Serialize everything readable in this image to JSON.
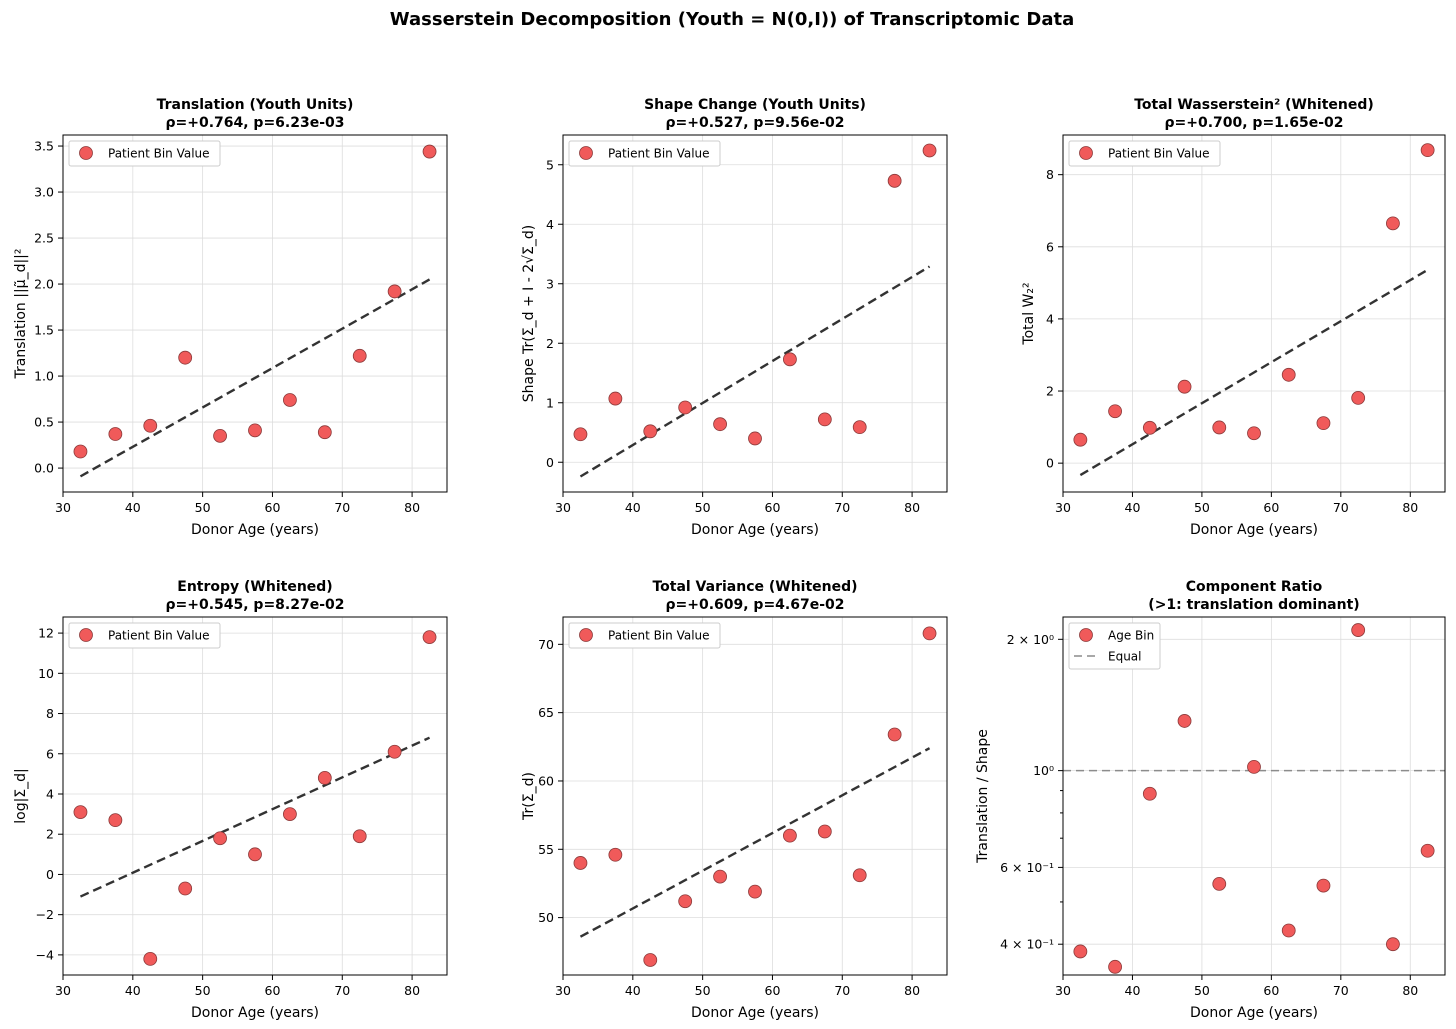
{
  "figure_title": "Wasserstein Decomposition (Youth = N(0,I)) of Transcriptomic Data",
  "colors": {
    "point_fill": "#f05a5a",
    "point_edge": "#8b3a3a",
    "trend": "#333333",
    "reference": "#8c8c8c",
    "grid": "#dddddd"
  },
  "chart_data": [
    {
      "type": "scatter",
      "title": "Translation (Youth Units)",
      "subtitle": "ρ=+0.764, p=6.23e-03",
      "xlabel": "Donor Age (years)",
      "ylabel": "Translation ||μ̃_d||²",
      "xlim": [
        30,
        85
      ],
      "ylim": [
        -0.26,
        3.62
      ],
      "xticks": [
        30,
        40,
        50,
        60,
        70,
        80
      ],
      "yticks": [
        0.0,
        0.5,
        1.0,
        1.5,
        2.0,
        2.5,
        3.0,
        3.5
      ],
      "ytick_labels": [
        "0.0",
        "0.5",
        "1.0",
        "1.5",
        "2.0",
        "2.5",
        "3.0",
        "3.5"
      ],
      "legend": [
        "Patient Bin Value"
      ],
      "series": [
        {
          "name": "Patient Bin Value",
          "x": [
            32.5,
            37.5,
            42.5,
            47.5,
            52.5,
            57.5,
            62.5,
            67.5,
            72.5,
            77.5,
            82.5
          ],
          "y": [
            0.18,
            0.37,
            0.46,
            1.2,
            0.35,
            0.41,
            0.74,
            0.39,
            1.22,
            1.92,
            3.44
          ]
        }
      ],
      "trend": {
        "x": [
          32.5,
          82.5
        ],
        "y": [
          -0.09,
          2.05
        ]
      }
    },
    {
      "type": "scatter",
      "title": "Shape Change (Youth Units)",
      "subtitle": "ρ=+0.527, p=9.56e-02",
      "xlabel": "Donor Age (years)",
      "ylabel": "Shape Tr(Σ_d + I - 2√Σ_d)",
      "xlim": [
        30,
        85
      ],
      "ylim": [
        -0.5,
        5.5
      ],
      "xticks": [
        30,
        40,
        50,
        60,
        70,
        80
      ],
      "yticks": [
        0,
        1,
        2,
        3,
        4,
        5
      ],
      "ytick_labels": [
        "0",
        "1",
        "2",
        "3",
        "4",
        "5"
      ],
      "legend": [
        "Patient Bin Value"
      ],
      "series": [
        {
          "name": "Patient Bin Value",
          "x": [
            32.5,
            37.5,
            42.5,
            47.5,
            52.5,
            57.5,
            62.5,
            67.5,
            72.5,
            77.5,
            82.5
          ],
          "y": [
            0.47,
            1.07,
            0.52,
            0.92,
            0.64,
            0.4,
            1.73,
            0.72,
            0.59,
            4.73,
            5.24
          ]
        }
      ],
      "trend": {
        "x": [
          32.5,
          82.5
        ],
        "y": [
          -0.24,
          3.29
        ]
      }
    },
    {
      "type": "scatter",
      "title": "Total Wasserstein² (Whitened)",
      "subtitle": "ρ=+0.700, p=1.65e-02",
      "xlabel": "Donor Age (years)",
      "ylabel": "Total W₂²",
      "xlim": [
        30,
        85
      ],
      "ylim": [
        -0.8,
        9.1
      ],
      "xticks": [
        30,
        40,
        50,
        60,
        70,
        80
      ],
      "yticks": [
        0,
        2,
        4,
        6,
        8
      ],
      "ytick_labels": [
        "0",
        "2",
        "4",
        "6",
        "8"
      ],
      "legend": [
        "Patient Bin Value"
      ],
      "series": [
        {
          "name": "Patient Bin Value",
          "x": [
            32.5,
            37.5,
            42.5,
            47.5,
            52.5,
            57.5,
            62.5,
            67.5,
            72.5,
            77.5,
            82.5
          ],
          "y": [
            0.65,
            1.44,
            0.98,
            2.12,
            0.99,
            0.83,
            2.45,
            1.11,
            1.81,
            6.65,
            8.68
          ]
        }
      ],
      "trend": {
        "x": [
          32.5,
          82.5
        ],
        "y": [
          -0.33,
          5.36
        ]
      }
    },
    {
      "type": "scatter",
      "title": "Entropy (Whitened)",
      "subtitle": "ρ=+0.545, p=8.27e-02",
      "xlabel": "Donor Age (years)",
      "ylabel": "log|Σ_d|",
      "xlim": [
        30,
        85
      ],
      "ylim": [
        -5.0,
        12.8
      ],
      "xticks": [
        30,
        40,
        50,
        60,
        70,
        80
      ],
      "yticks": [
        -4,
        -2,
        0,
        2,
        4,
        6,
        8,
        10,
        12
      ],
      "ytick_labels": [
        "−4",
        "−2",
        "0",
        "2",
        "4",
        "6",
        "8",
        "10",
        "12"
      ],
      "legend": [
        "Patient Bin Value"
      ],
      "series": [
        {
          "name": "Patient Bin Value",
          "x": [
            32.5,
            37.5,
            42.5,
            47.5,
            52.5,
            57.5,
            62.5,
            67.5,
            72.5,
            77.5,
            82.5
          ],
          "y": [
            3.1,
            2.7,
            -4.2,
            -0.7,
            1.8,
            1.0,
            3.0,
            4.8,
            1.9,
            6.1,
            11.8
          ]
        }
      ],
      "trend": {
        "x": [
          32.5,
          82.5
        ],
        "y": [
          -1.1,
          6.8
        ]
      }
    },
    {
      "type": "scatter",
      "title": "Total Variance (Whitened)",
      "subtitle": "ρ=+0.609, p=4.67e-02",
      "xlabel": "Donor Age (years)",
      "ylabel": "Tr(Σ_d)",
      "xlim": [
        30,
        85
      ],
      "ylim": [
        45.8,
        72.0
      ],
      "xticks": [
        30,
        40,
        50,
        60,
        70,
        80
      ],
      "yticks": [
        50,
        55,
        60,
        65,
        70
      ],
      "ytick_labels": [
        "50",
        "55",
        "60",
        "65",
        "70"
      ],
      "legend": [
        "Patient Bin Value"
      ],
      "series": [
        {
          "name": "Patient Bin Value",
          "x": [
            32.5,
            37.5,
            42.5,
            47.5,
            52.5,
            57.5,
            62.5,
            67.5,
            72.5,
            77.5,
            82.5
          ],
          "y": [
            54.0,
            54.6,
            46.9,
            51.2,
            53.0,
            51.9,
            56.0,
            56.3,
            53.1,
            63.4,
            70.8
          ]
        }
      ],
      "trend": {
        "x": [
          32.5,
          82.5
        ],
        "y": [
          48.6,
          62.4
        ]
      }
    },
    {
      "type": "scatter",
      "yscale": "log",
      "title": "Component Ratio",
      "subtitle": "(>1: translation dominant)",
      "xlabel": "Donor Age (years)",
      "ylabel": "Translation / Shape",
      "xlim": [
        30,
        85
      ],
      "ylim": [
        0.34,
        2.25
      ],
      "xticks": [
        30,
        40,
        50,
        60,
        70,
        80
      ],
      "yticks": [
        0.4,
        0.6,
        1.0,
        2.0
      ],
      "ytick_labels": [
        "4 × 10⁻¹",
        "6 × 10⁻¹",
        "10⁰",
        "2 × 10⁰"
      ],
      "minor_yticks": [
        0.5,
        0.7,
        0.8,
        0.9
      ],
      "legend": [
        "Age Bin",
        "Equal"
      ],
      "series": [
        {
          "name": "Age Bin",
          "x": [
            32.5,
            37.5,
            42.5,
            47.5,
            52.5,
            57.5,
            62.5,
            67.5,
            72.5,
            77.5,
            82.5
          ],
          "y": [
            0.385,
            0.355,
            0.885,
            1.3,
            0.55,
            1.02,
            0.43,
            0.545,
            2.1,
            0.4,
            0.655
          ]
        }
      ],
      "reference_line": {
        "name": "Equal",
        "y": 1.0
      }
    }
  ]
}
